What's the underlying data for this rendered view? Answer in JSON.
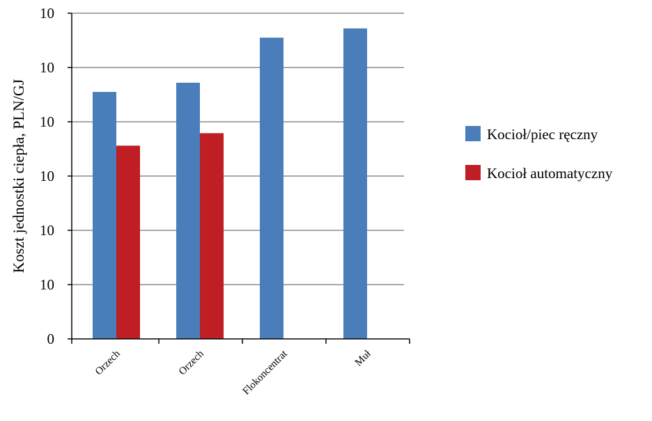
{
  "chart_data": {
    "type": "bar",
    "title": "",
    "xlabel": "",
    "ylabel": "Koszt jednostki ciepła, PLN/GJ",
    "categories": [
      "Orzech",
      "Orzech",
      "Flokoncentrat",
      "Muł"
    ],
    "y_tick_labels": [
      "0",
      "10",
      "10",
      "10",
      "10",
      "10",
      "10"
    ],
    "ylim": [
      0,
      60
    ],
    "grid": true,
    "legend_position": "right",
    "series": [
      {
        "name": "Kocioł/piec ręczny",
        "color": "#4a7ebb",
        "values": [
          45.5,
          47.2,
          55.5,
          57.2
        ]
      },
      {
        "name": "Kocioł automatyczny",
        "color": "#be1e24",
        "values": [
          35.6,
          37.9,
          null,
          null
        ]
      }
    ]
  }
}
